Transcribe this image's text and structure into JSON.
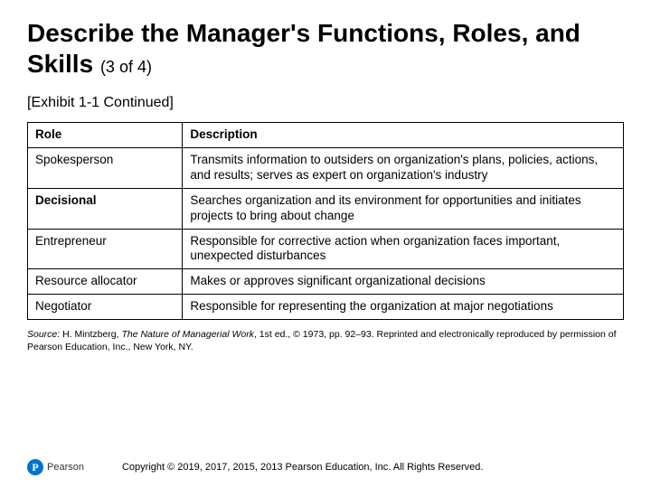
{
  "title_main": "Describe the Manager's Functions, Roles, and Skills ",
  "title_sub": "(3 of 4)",
  "exhibit": "[Exhibit 1-1 Continued]",
  "table": {
    "columns": [
      "Role",
      "Description"
    ],
    "col_widths": [
      "26%",
      "74%"
    ],
    "rows": [
      {
        "role": "Spokesperson",
        "bold": false,
        "desc": "Transmits information to outsiders on organization's plans, policies, actions, and results; serves as expert on organization's industry"
      },
      {
        "role": "Decisional",
        "bold": true,
        "desc": "Searches organization and its environment for opportunities and initiates projects to bring about change"
      },
      {
        "role": "Entrepreneur",
        "bold": false,
        "desc": "Responsible for corrective action when organization faces important, unexpected disturbances"
      },
      {
        "role": "Resource allocator",
        "bold": false,
        "desc": "Makes or approves significant organizational decisions"
      },
      {
        "role": "Negotiator",
        "bold": false,
        "desc": "Responsible for representing the organization at major negotiations"
      }
    ]
  },
  "source": {
    "label": "Source:",
    "author": " H. Mintzberg, ",
    "book": "The Nature of Managerial Work",
    "rest": ", 1st ed., © 1973, pp. 92–93. Reprinted and electronically reproduced by permission of Pearson Education, Inc., New York, NY."
  },
  "logo": {
    "mark": "P",
    "text": "Pearson",
    "brand_color": "#0073cf"
  },
  "copyright": "Copyright © 2019, 2017, 2015, 2013 Pearson Education, Inc. All Rights Reserved."
}
